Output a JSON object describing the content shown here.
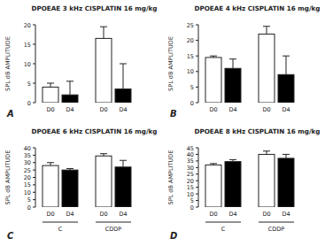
{
  "chart_data": [
    {
      "type": "bar",
      "panel_label": "A",
      "title": "DPOEAE 3 kHz CISPLATIN 16 mg/kg",
      "y_label": "SPL dB AMPLITUDE",
      "categories": [
        "D0",
        "D4",
        "D0",
        "D4"
      ],
      "values": [
        4,
        2,
        16.5,
        3.5
      ],
      "errors": [
        1,
        3.5,
        3,
        6.5
      ],
      "colors": [
        "#ffffff",
        "#000000",
        "#ffffff",
        "#000000"
      ],
      "ylim": [
        0,
        20
      ],
      "yticks": [
        0,
        5,
        10,
        15,
        20
      ]
    },
    {
      "type": "bar",
      "panel_label": "B",
      "title": "DPOEAE 4 kHz CISPLATIN 16 mg/kg",
      "y_label": "SPL dB AMPLITUDE",
      "categories": [
        "D0",
        "D4",
        "D0",
        "D4"
      ],
      "values": [
        14.5,
        11,
        22,
        9
      ],
      "errors": [
        0.5,
        3,
        2.5,
        6
      ],
      "colors": [
        "#ffffff",
        "#000000",
        "#ffffff",
        "#000000"
      ],
      "ylim": [
        0,
        25
      ],
      "yticks": [
        0,
        5,
        10,
        15,
        20,
        25
      ]
    },
    {
      "type": "bar",
      "panel_label": "C",
      "title": "DPOEAE 6 kHz CISPLATIN 16 mg/kg",
      "y_label": "SPL dB AMPLITUDE",
      "categories": [
        "D0",
        "D4",
        "D0",
        "D4"
      ],
      "values": [
        28,
        25,
        34.5,
        27
      ],
      "errors": [
        2,
        1,
        1.5,
        4.5
      ],
      "colors": [
        "#ffffff",
        "#000000",
        "#ffffff",
        "#000000"
      ],
      "groups": [
        "C",
        "CDDP"
      ],
      "ylim": [
        0,
        40
      ],
      "yticks": [
        0,
        5,
        10,
        15,
        20,
        25,
        30,
        35,
        40
      ]
    },
    {
      "type": "bar",
      "panel_label": "D",
      "title": "DPOEAE 8 kHz CISPLATIN 16 mg/kg",
      "y_label": "SPL dB AMPLITUDE",
      "categories": [
        "D0",
        "D4",
        "D0",
        "D4"
      ],
      "values": [
        32,
        34.5,
        40,
        37
      ],
      "errors": [
        1,
        1.5,
        2.5,
        3
      ],
      "colors": [
        "#ffffff",
        "#000000",
        "#ffffff",
        "#000000"
      ],
      "groups": [
        "C",
        "CDDP"
      ],
      "ylim": [
        0,
        45
      ],
      "yticks": [
        0,
        5,
        10,
        15,
        20,
        25,
        30,
        35,
        40,
        45
      ]
    }
  ]
}
